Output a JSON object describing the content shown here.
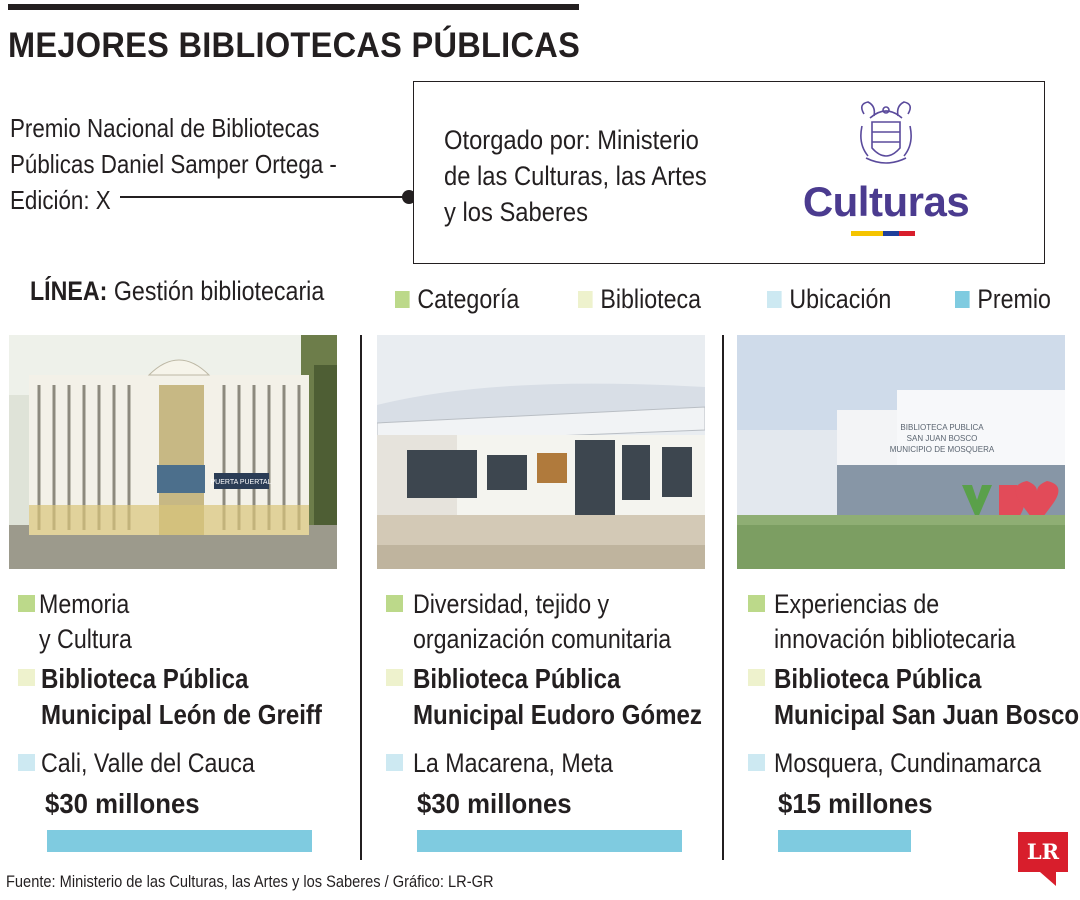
{
  "header": {
    "title": "MEJORES BIBLIOTECAS PÚBLICAS"
  },
  "premio": {
    "line1": "Premio Nacional de Bibliotecas",
    "line2": "Públicas Daniel Samper Ortega -",
    "line3": "Edición: X"
  },
  "award": {
    "line1": "Otorgado por: Ministerio",
    "line2": "de las Culturas, las Artes",
    "line3": "y los Saberes",
    "logo_text": "Culturas",
    "logo_icon": "coat-of-arms-icon",
    "flag_colors": [
      "#f5c400",
      "#1f3f9a",
      "#d81e2c"
    ]
  },
  "linea": {
    "label": "LÍNEA:",
    "value": "Gestión bibliotecaria"
  },
  "legend": [
    {
      "label": "Categoría",
      "color": "#bcd98a"
    },
    {
      "label": "Biblioteca",
      "color": "#eef2cd"
    },
    {
      "label": "Ubicación",
      "color": "#cde9f2"
    },
    {
      "label": "Premio",
      "color": "#7fcbe0"
    }
  ],
  "libraries": [
    {
      "category": [
        "Memoria",
        "y Cultura"
      ],
      "name": [
        "Biblioteca Pública",
        "Municipal León de Greiff"
      ],
      "location": "Cali, Valle del Cauca",
      "prize": "$30 millones",
      "prize_value_millions": 30,
      "photo_sign": "PUERTA PUERTAL"
    },
    {
      "category": [
        "Diversidad, tejido y",
        "organización comunitaria"
      ],
      "name": [
        "Biblioteca Pública",
        "Municipal Eudoro Gómez"
      ],
      "location": "La Macarena, Meta",
      "prize": "$30 millones",
      "prize_value_millions": 30
    },
    {
      "category": [
        "Experiencias de",
        "innovación bibliotecaria"
      ],
      "name": [
        "Biblioteca Pública",
        "Municipal San Juan Bosco"
      ],
      "location": "Mosquera, Cundinamarca",
      "prize": "$15 millones",
      "prize_value_millions": 15,
      "photo_sign": [
        "BIBLIOTECA PUBLICA",
        "SAN JUAN BOSCO",
        "MUNICIPIO DE MOSQUERA"
      ]
    }
  ],
  "footer": {
    "source": "Fuente: Ministerio de las Culturas, las Artes y los Saberes / Gráfico: LR-GR",
    "brand": "LR"
  }
}
